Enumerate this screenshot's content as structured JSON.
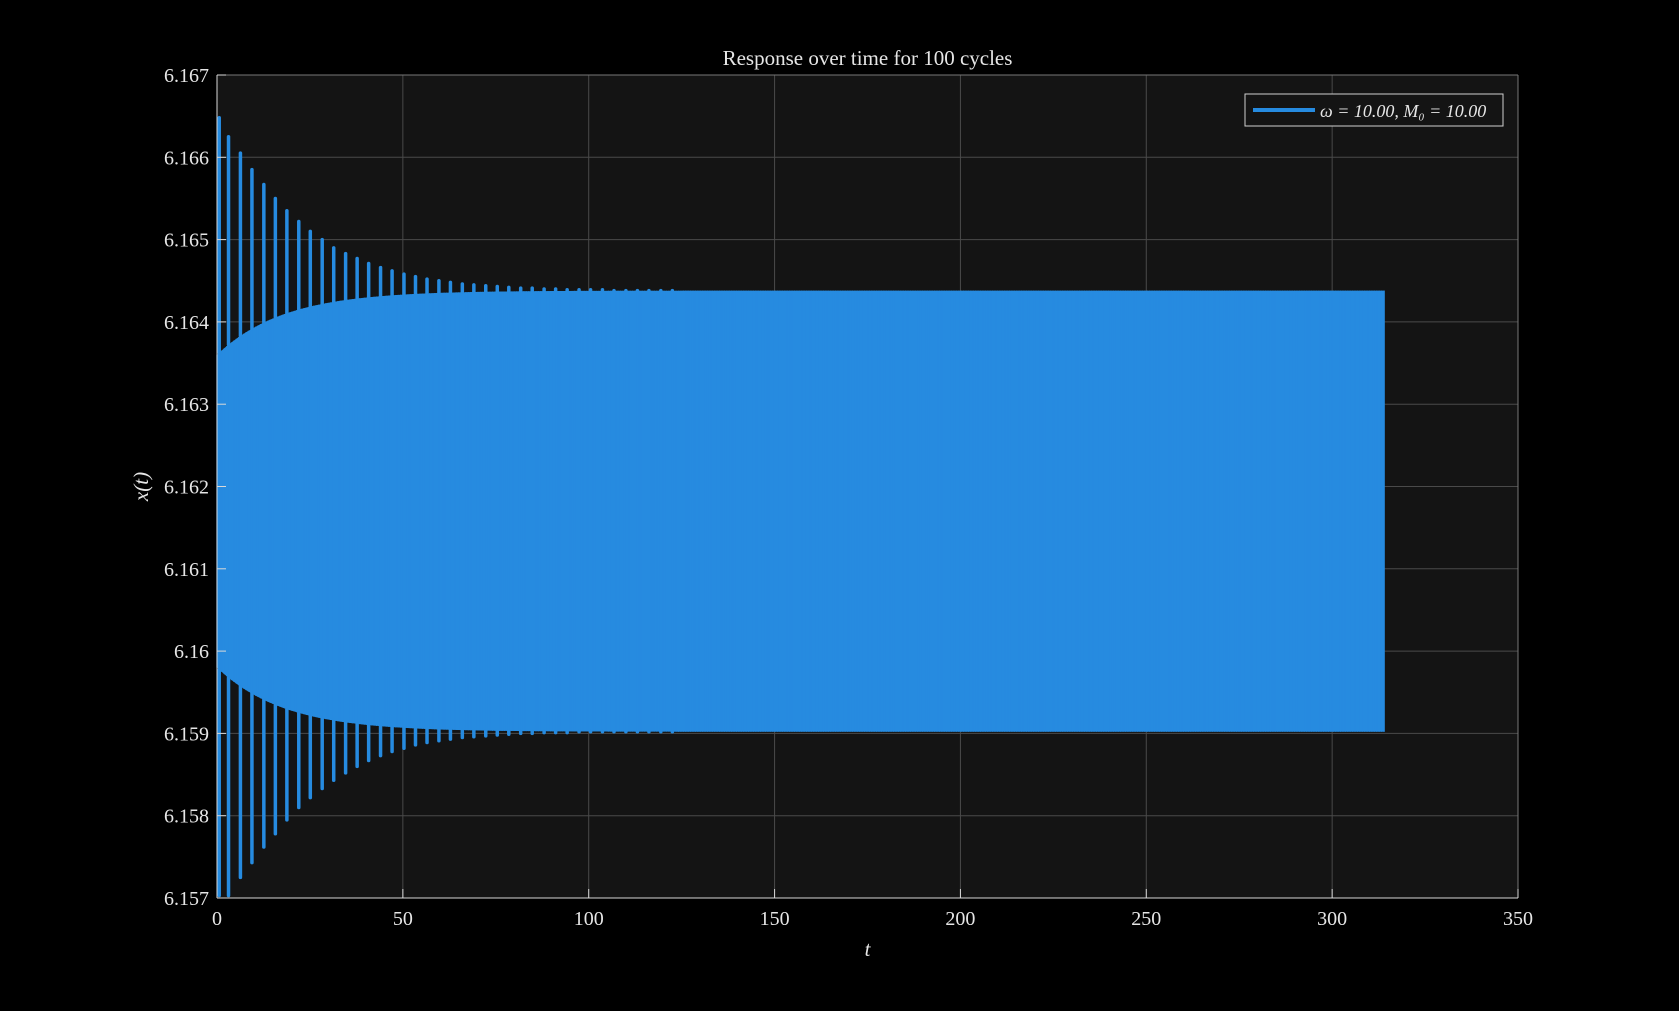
{
  "chart_data": {
    "type": "line",
    "title": "Response over time for 100 cycles",
    "xlabel": "t",
    "ylabel": "x(t)",
    "xlim": [
      0,
      350
    ],
    "ylim": [
      6.157,
      6.167
    ],
    "x_ticks": [
      0,
      50,
      100,
      150,
      200,
      250,
      300,
      350
    ],
    "x_tick_labels": [
      "0",
      "50",
      "100",
      "150",
      "200",
      "250",
      "300",
      "350"
    ],
    "y_ticks": [
      6.157,
      6.158,
      6.159,
      6.16,
      6.161,
      6.162,
      6.163,
      6.164,
      6.165,
      6.166,
      6.167
    ],
    "y_tick_labels": [
      "6.157",
      "6.158",
      "6.159",
      "6.16",
      "6.161",
      "6.162",
      "6.163",
      "6.164",
      "6.165",
      "6.166",
      "6.167"
    ],
    "grid": true,
    "legend_position": "top-right",
    "background": "#141414",
    "figure_background": "#000000",
    "series": [
      {
        "name": "ω = 10.00, M₀ = 10.00",
        "color": "#268BE0",
        "t_range": [
          0,
          314.16
        ],
        "steady_state_min": 6.15902,
        "steady_state_max": 6.16438,
        "initial_max": 6.16648,
        "initial_min": 6.15703,
        "transient_peaks": [
          {
            "t": 0.6,
            "max": 6.16648,
            "min": 6.15703
          },
          {
            "t": 3.1,
            "max": 6.16625,
            "min": 6.15703
          },
          {
            "t": 6.3,
            "max": 6.16605,
            "min": 6.15725
          },
          {
            "t": 9.4,
            "max": 6.16585,
            "min": 6.15743
          },
          {
            "t": 12.6,
            "max": 6.16567,
            "min": 6.15762
          },
          {
            "t": 15.7,
            "max": 6.1655,
            "min": 6.15778
          },
          {
            "t": 18.8,
            "max": 6.16535,
            "min": 6.15795
          },
          {
            "t": 22.0,
            "max": 6.16522,
            "min": 6.1581
          },
          {
            "t": 25.1,
            "max": 6.1651,
            "min": 6.15822
          },
          {
            "t": 28.3,
            "max": 6.165,
            "min": 6.15833
          },
          {
            "t": 31.4,
            "max": 6.1649,
            "min": 6.15843
          },
          {
            "t": 34.6,
            "max": 6.16483,
            "min": 6.15852
          },
          {
            "t": 37.7,
            "max": 6.16477,
            "min": 6.1586
          },
          {
            "t": 40.8,
            "max": 6.16471,
            "min": 6.15867
          },
          {
            "t": 44.0,
            "max": 6.16466,
            "min": 6.15873
          },
          {
            "t": 47.1,
            "max": 6.16462,
            "min": 6.15878
          },
          {
            "t": 50.3,
            "max": 6.16458,
            "min": 6.15882
          },
          {
            "t": 53.4,
            "max": 6.16455,
            "min": 6.15886
          },
          {
            "t": 56.5,
            "max": 6.16452,
            "min": 6.15889
          },
          {
            "t": 59.7,
            "max": 6.1645,
            "min": 6.15891
          },
          {
            "t": 62.8,
            "max": 6.16448,
            "min": 6.15893
          },
          {
            "t": 66.0,
            "max": 6.16446,
            "min": 6.15895
          },
          {
            "t": 69.1,
            "max": 6.16445,
            "min": 6.15896
          },
          {
            "t": 72.3,
            "max": 6.16444,
            "min": 6.15897
          },
          {
            "t": 75.4,
            "max": 6.16443,
            "min": 6.15898
          },
          {
            "t": 78.5,
            "max": 6.16442,
            "min": 6.15899
          },
          {
            "t": 81.7,
            "max": 6.16441,
            "min": 6.159
          },
          {
            "t": 84.8,
            "max": 6.16441,
            "min": 6.159
          },
          {
            "t": 88.0,
            "max": 6.1644,
            "min": 6.15901
          },
          {
            "t": 91.1,
            "max": 6.1644,
            "min": 6.15901
          },
          {
            "t": 94.2,
            "max": 6.16439,
            "min": 6.15901
          },
          {
            "t": 97.4,
            "max": 6.16439,
            "min": 6.15902
          },
          {
            "t": 100.5,
            "max": 6.16439,
            "min": 6.15902
          },
          {
            "t": 103.7,
            "max": 6.16439,
            "min": 6.15902
          },
          {
            "t": 106.8,
            "max": 6.16438,
            "min": 6.15902
          },
          {
            "t": 110.0,
            "max": 6.16438,
            "min": 6.15902
          },
          {
            "t": 113.1,
            "max": 6.16438,
            "min": 6.15902
          },
          {
            "t": 116.2,
            "max": 6.16438,
            "min": 6.15902
          },
          {
            "t": 119.4,
            "max": 6.16438,
            "min": 6.15902
          },
          {
            "t": 122.5,
            "max": 6.16438,
            "min": 6.15902
          }
        ]
      }
    ]
  }
}
